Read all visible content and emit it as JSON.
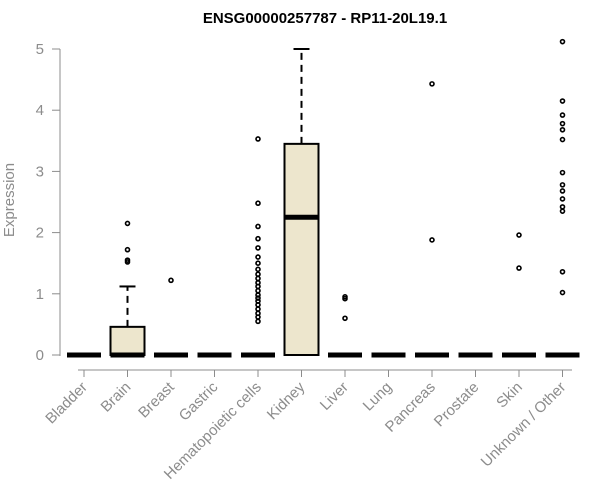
{
  "chart_data": {
    "type": "boxplot",
    "title": "ENSG00000257787 - RP11-20L19.1",
    "ylabel": "Expression",
    "xlabel": "",
    "ylim": [
      0,
      5.1
    ],
    "yticks": [
      "0",
      "1",
      "2",
      "3",
      "4",
      "5"
    ],
    "box_fill": "#ede6cd",
    "categories": [
      "Bladder",
      "Brain",
      "Breast",
      "Gastric",
      "Hematopoietic cells",
      "Kidney",
      "Liver",
      "Lung",
      "Pancreas",
      "Prostate",
      "Skin",
      "Unknown / Other"
    ],
    "boxes": [
      {
        "q1": 0,
        "median": 0,
        "q3": 0,
        "whisker_low": 0,
        "whisker_high": 0,
        "outliers": []
      },
      {
        "q1": 0,
        "median": 0,
        "q3": 0.46,
        "whisker_low": 0,
        "whisker_high": 1.12,
        "outliers": [
          1.52,
          1.55,
          1.72,
          2.15
        ]
      },
      {
        "q1": 0,
        "median": 0,
        "q3": 0,
        "whisker_low": 0,
        "whisker_high": 0,
        "outliers": [
          1.22
        ]
      },
      {
        "q1": 0,
        "median": 0,
        "q3": 0,
        "whisker_low": 0,
        "whisker_high": 0,
        "outliers": []
      },
      {
        "q1": 0,
        "median": 0,
        "q3": 0,
        "whisker_low": 0,
        "whisker_high": 0,
        "outliers": [
          0.55,
          0.62,
          0.68,
          0.75,
          0.82,
          0.88,
          0.93,
          0.98,
          1.05,
          1.12,
          1.18,
          1.25,
          1.32,
          1.4,
          1.5,
          1.6,
          1.75,
          1.9,
          2.1,
          2.48,
          3.53
        ]
      },
      {
        "q1": 0,
        "median": 2.25,
        "q3": 3.45,
        "whisker_low": 0,
        "whisker_high": 5.0,
        "outliers": []
      },
      {
        "q1": 0,
        "median": 0,
        "q3": 0,
        "whisker_low": 0,
        "whisker_high": 0,
        "outliers": [
          0.6,
          0.92,
          0.95
        ]
      },
      {
        "q1": 0,
        "median": 0,
        "q3": 0,
        "whisker_low": 0,
        "whisker_high": 0,
        "outliers": []
      },
      {
        "q1": 0,
        "median": 0,
        "q3": 0,
        "whisker_low": 0,
        "whisker_high": 0,
        "outliers": [
          1.88,
          4.43
        ]
      },
      {
        "q1": 0,
        "median": 0,
        "q3": 0,
        "whisker_low": 0,
        "whisker_high": 0,
        "outliers": []
      },
      {
        "q1": 0,
        "median": 0,
        "q3": 0,
        "whisker_low": 0,
        "whisker_high": 0,
        "outliers": [
          1.42,
          1.96
        ]
      },
      {
        "q1": 0,
        "median": 0,
        "q3": 0,
        "whisker_low": 0,
        "whisker_high": 0,
        "outliers": [
          1.02,
          1.36,
          2.35,
          2.42,
          2.55,
          2.68,
          2.78,
          2.98,
          3.52,
          3.68,
          3.78,
          3.92,
          4.15,
          5.12
        ]
      }
    ]
  }
}
